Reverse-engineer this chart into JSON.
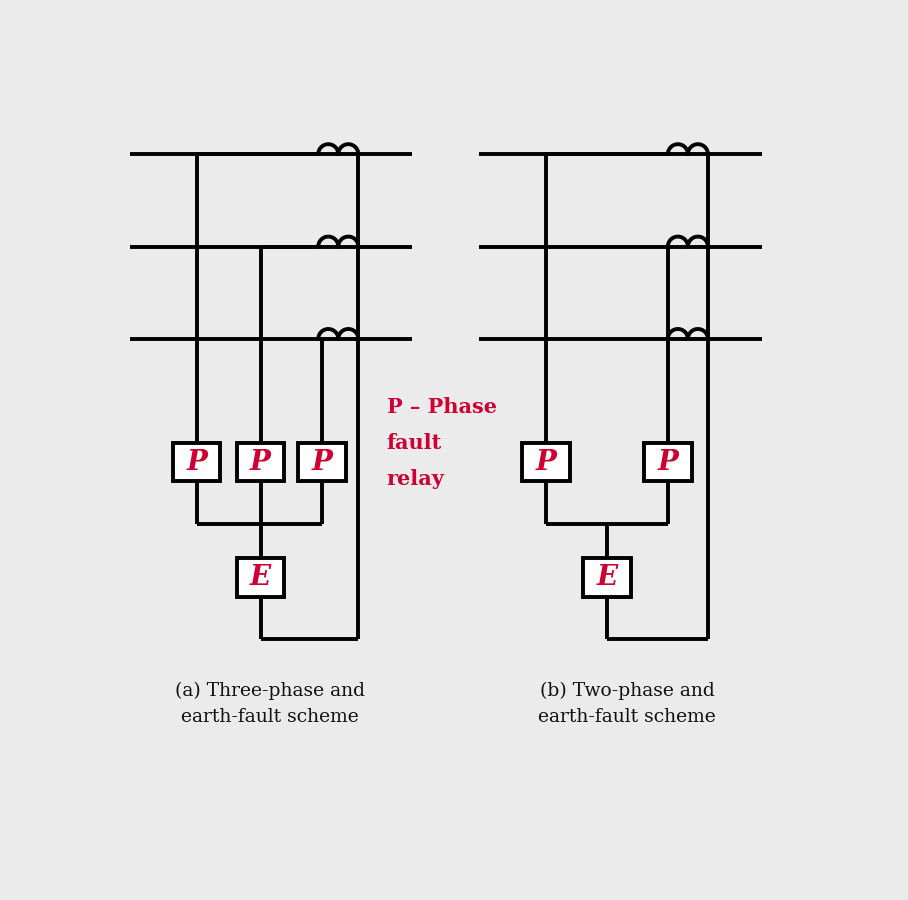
{
  "bg_color": "#ebebeb",
  "line_color": "black",
  "lw": 2.8,
  "relay_text_color": "#cc0033",
  "label_color": "#111111",
  "annotation_color": "#cc0033",
  "title_a": "(a) Three-phase and\nearth-fault scheme",
  "title_b": "(b) Two-phase and\nearth-fault scheme",
  "annotation": "P – Phase\nfault\nrelay",
  "ct_r": 13
}
